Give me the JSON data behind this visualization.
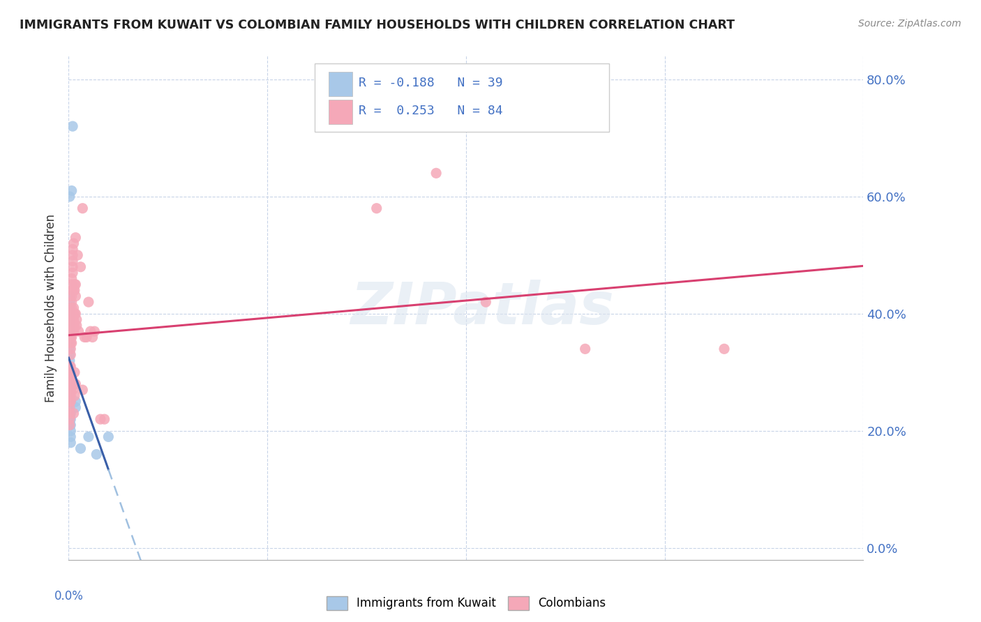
{
  "title": "IMMIGRANTS FROM KUWAIT VS COLOMBIAN FAMILY HOUSEHOLDS WITH CHILDREN CORRELATION CHART",
  "source": "Source: ZipAtlas.com",
  "ylabel": "Family Households with Children",
  "xlim": [
    0.0,
    0.4
  ],
  "ylim": [
    -0.02,
    0.84
  ],
  "yticks": [
    0.0,
    0.2,
    0.4,
    0.6,
    0.8
  ],
  "xticks": [
    0.0,
    0.1,
    0.2,
    0.3,
    0.4
  ],
  "kuwait_color": "#a8c8e8",
  "colombian_color": "#f5a8b8",
  "kuwait_line_color": "#3a5fa8",
  "colombian_line_color": "#d84070",
  "kuwait_dashed_color": "#a0c0e0",
  "watermark": "ZIPatlas",
  "background_color": "#ffffff",
  "right_tick_color": "#4472c4",
  "kuwait_scatter": [
    [
      0.0005,
      0.43
    ],
    [
      0.0005,
      0.6
    ],
    [
      0.0005,
      0.42
    ],
    [
      0.0005,
      0.41
    ],
    [
      0.0005,
      0.4
    ],
    [
      0.0005,
      0.39
    ],
    [
      0.0005,
      0.38
    ],
    [
      0.0005,
      0.37
    ],
    [
      0.0005,
      0.36
    ],
    [
      0.0005,
      0.35
    ],
    [
      0.0005,
      0.34
    ],
    [
      0.0005,
      0.33
    ],
    [
      0.0005,
      0.32
    ],
    [
      0.0005,
      0.31
    ],
    [
      0.0005,
      0.3
    ],
    [
      0.0005,
      0.29
    ],
    [
      0.0005,
      0.28
    ],
    [
      0.0005,
      0.27
    ],
    [
      0.0005,
      0.26
    ],
    [
      0.0005,
      0.25
    ],
    [
      0.0005,
      0.24
    ],
    [
      0.0005,
      0.23
    ],
    [
      0.0005,
      0.22
    ],
    [
      0.0005,
      0.21
    ],
    [
      0.001,
      0.3
    ],
    [
      0.001,
      0.27
    ],
    [
      0.001,
      0.25
    ],
    [
      0.001,
      0.23
    ],
    [
      0.001,
      0.22
    ],
    [
      0.001,
      0.21
    ],
    [
      0.001,
      0.2
    ],
    [
      0.001,
      0.19
    ],
    [
      0.001,
      0.18
    ],
    [
      0.0015,
      0.61
    ],
    [
      0.002,
      0.72
    ],
    [
      0.0035,
      0.25
    ],
    [
      0.0035,
      0.24
    ],
    [
      0.006,
      0.17
    ],
    [
      0.01,
      0.19
    ],
    [
      0.014,
      0.16
    ],
    [
      0.02,
      0.19
    ]
  ],
  "colombian_scatter": [
    [
      0.0005,
      0.31
    ],
    [
      0.0005,
      0.3
    ],
    [
      0.0005,
      0.29
    ],
    [
      0.0005,
      0.28
    ],
    [
      0.0005,
      0.27
    ],
    [
      0.0005,
      0.26
    ],
    [
      0.0005,
      0.25
    ],
    [
      0.0005,
      0.24
    ],
    [
      0.0005,
      0.23
    ],
    [
      0.0005,
      0.22
    ],
    [
      0.0005,
      0.21
    ],
    [
      0.001,
      0.39
    ],
    [
      0.001,
      0.38
    ],
    [
      0.001,
      0.37
    ],
    [
      0.001,
      0.36
    ],
    [
      0.001,
      0.35
    ],
    [
      0.001,
      0.34
    ],
    [
      0.001,
      0.33
    ],
    [
      0.001,
      0.31
    ],
    [
      0.001,
      0.3
    ],
    [
      0.001,
      0.29
    ],
    [
      0.001,
      0.28
    ],
    [
      0.001,
      0.27
    ],
    [
      0.001,
      0.26
    ],
    [
      0.001,
      0.25
    ],
    [
      0.0015,
      0.46
    ],
    [
      0.0015,
      0.45
    ],
    [
      0.0015,
      0.44
    ],
    [
      0.0015,
      0.43
    ],
    [
      0.0015,
      0.42
    ],
    [
      0.0015,
      0.41
    ],
    [
      0.0015,
      0.4
    ],
    [
      0.0015,
      0.39
    ],
    [
      0.0015,
      0.38
    ],
    [
      0.0015,
      0.37
    ],
    [
      0.0015,
      0.36
    ],
    [
      0.0015,
      0.35
    ],
    [
      0.002,
      0.51
    ],
    [
      0.002,
      0.5
    ],
    [
      0.002,
      0.49
    ],
    [
      0.002,
      0.48
    ],
    [
      0.002,
      0.47
    ],
    [
      0.002,
      0.39
    ],
    [
      0.002,
      0.28
    ],
    [
      0.002,
      0.27
    ],
    [
      0.0025,
      0.52
    ],
    [
      0.0025,
      0.44
    ],
    [
      0.0025,
      0.41
    ],
    [
      0.0025,
      0.4
    ],
    [
      0.0025,
      0.39
    ],
    [
      0.0025,
      0.38
    ],
    [
      0.0025,
      0.37
    ],
    [
      0.0025,
      0.23
    ],
    [
      0.003,
      0.45
    ],
    [
      0.003,
      0.44
    ],
    [
      0.003,
      0.4
    ],
    [
      0.003,
      0.38
    ],
    [
      0.003,
      0.3
    ],
    [
      0.003,
      0.28
    ],
    [
      0.003,
      0.26
    ],
    [
      0.0035,
      0.53
    ],
    [
      0.0035,
      0.45
    ],
    [
      0.0035,
      0.43
    ],
    [
      0.0035,
      0.4
    ],
    [
      0.0035,
      0.28
    ],
    [
      0.004,
      0.39
    ],
    [
      0.004,
      0.38
    ],
    [
      0.0045,
      0.5
    ],
    [
      0.005,
      0.37
    ],
    [
      0.006,
      0.48
    ],
    [
      0.007,
      0.58
    ],
    [
      0.007,
      0.27
    ],
    [
      0.008,
      0.36
    ],
    [
      0.009,
      0.36
    ],
    [
      0.01,
      0.42
    ],
    [
      0.011,
      0.37
    ],
    [
      0.012,
      0.36
    ],
    [
      0.013,
      0.37
    ],
    [
      0.016,
      0.22
    ],
    [
      0.018,
      0.22
    ],
    [
      0.155,
      0.58
    ],
    [
      0.185,
      0.64
    ],
    [
      0.21,
      0.42
    ],
    [
      0.26,
      0.34
    ],
    [
      0.33,
      0.34
    ]
  ]
}
